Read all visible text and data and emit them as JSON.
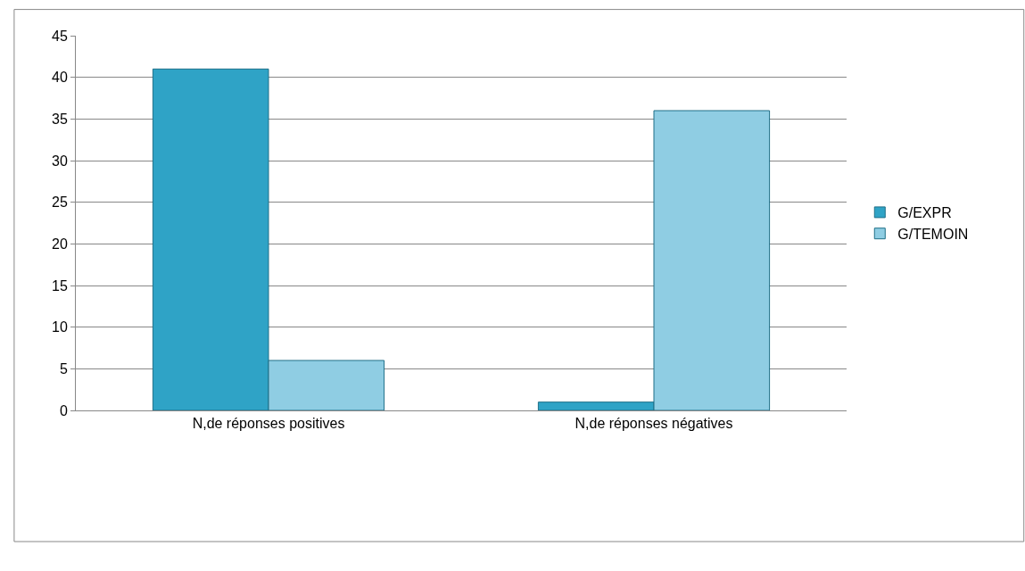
{
  "chart_data": {
    "type": "bar",
    "categories": [
      "N,de réponses positives",
      "N,de réponses négatives"
    ],
    "series": [
      {
        "name": "G/EXPR",
        "color": "#2fa3c6",
        "values": [
          41,
          1
        ]
      },
      {
        "name": "G/TEMOIN",
        "color": "#8fcde3",
        "values": [
          6,
          36
        ]
      }
    ],
    "ylim": [
      0,
      45
    ],
    "yticks": [
      0,
      5,
      10,
      15,
      20,
      25,
      30,
      35,
      40,
      45
    ],
    "grid": "y",
    "legend": "right"
  }
}
